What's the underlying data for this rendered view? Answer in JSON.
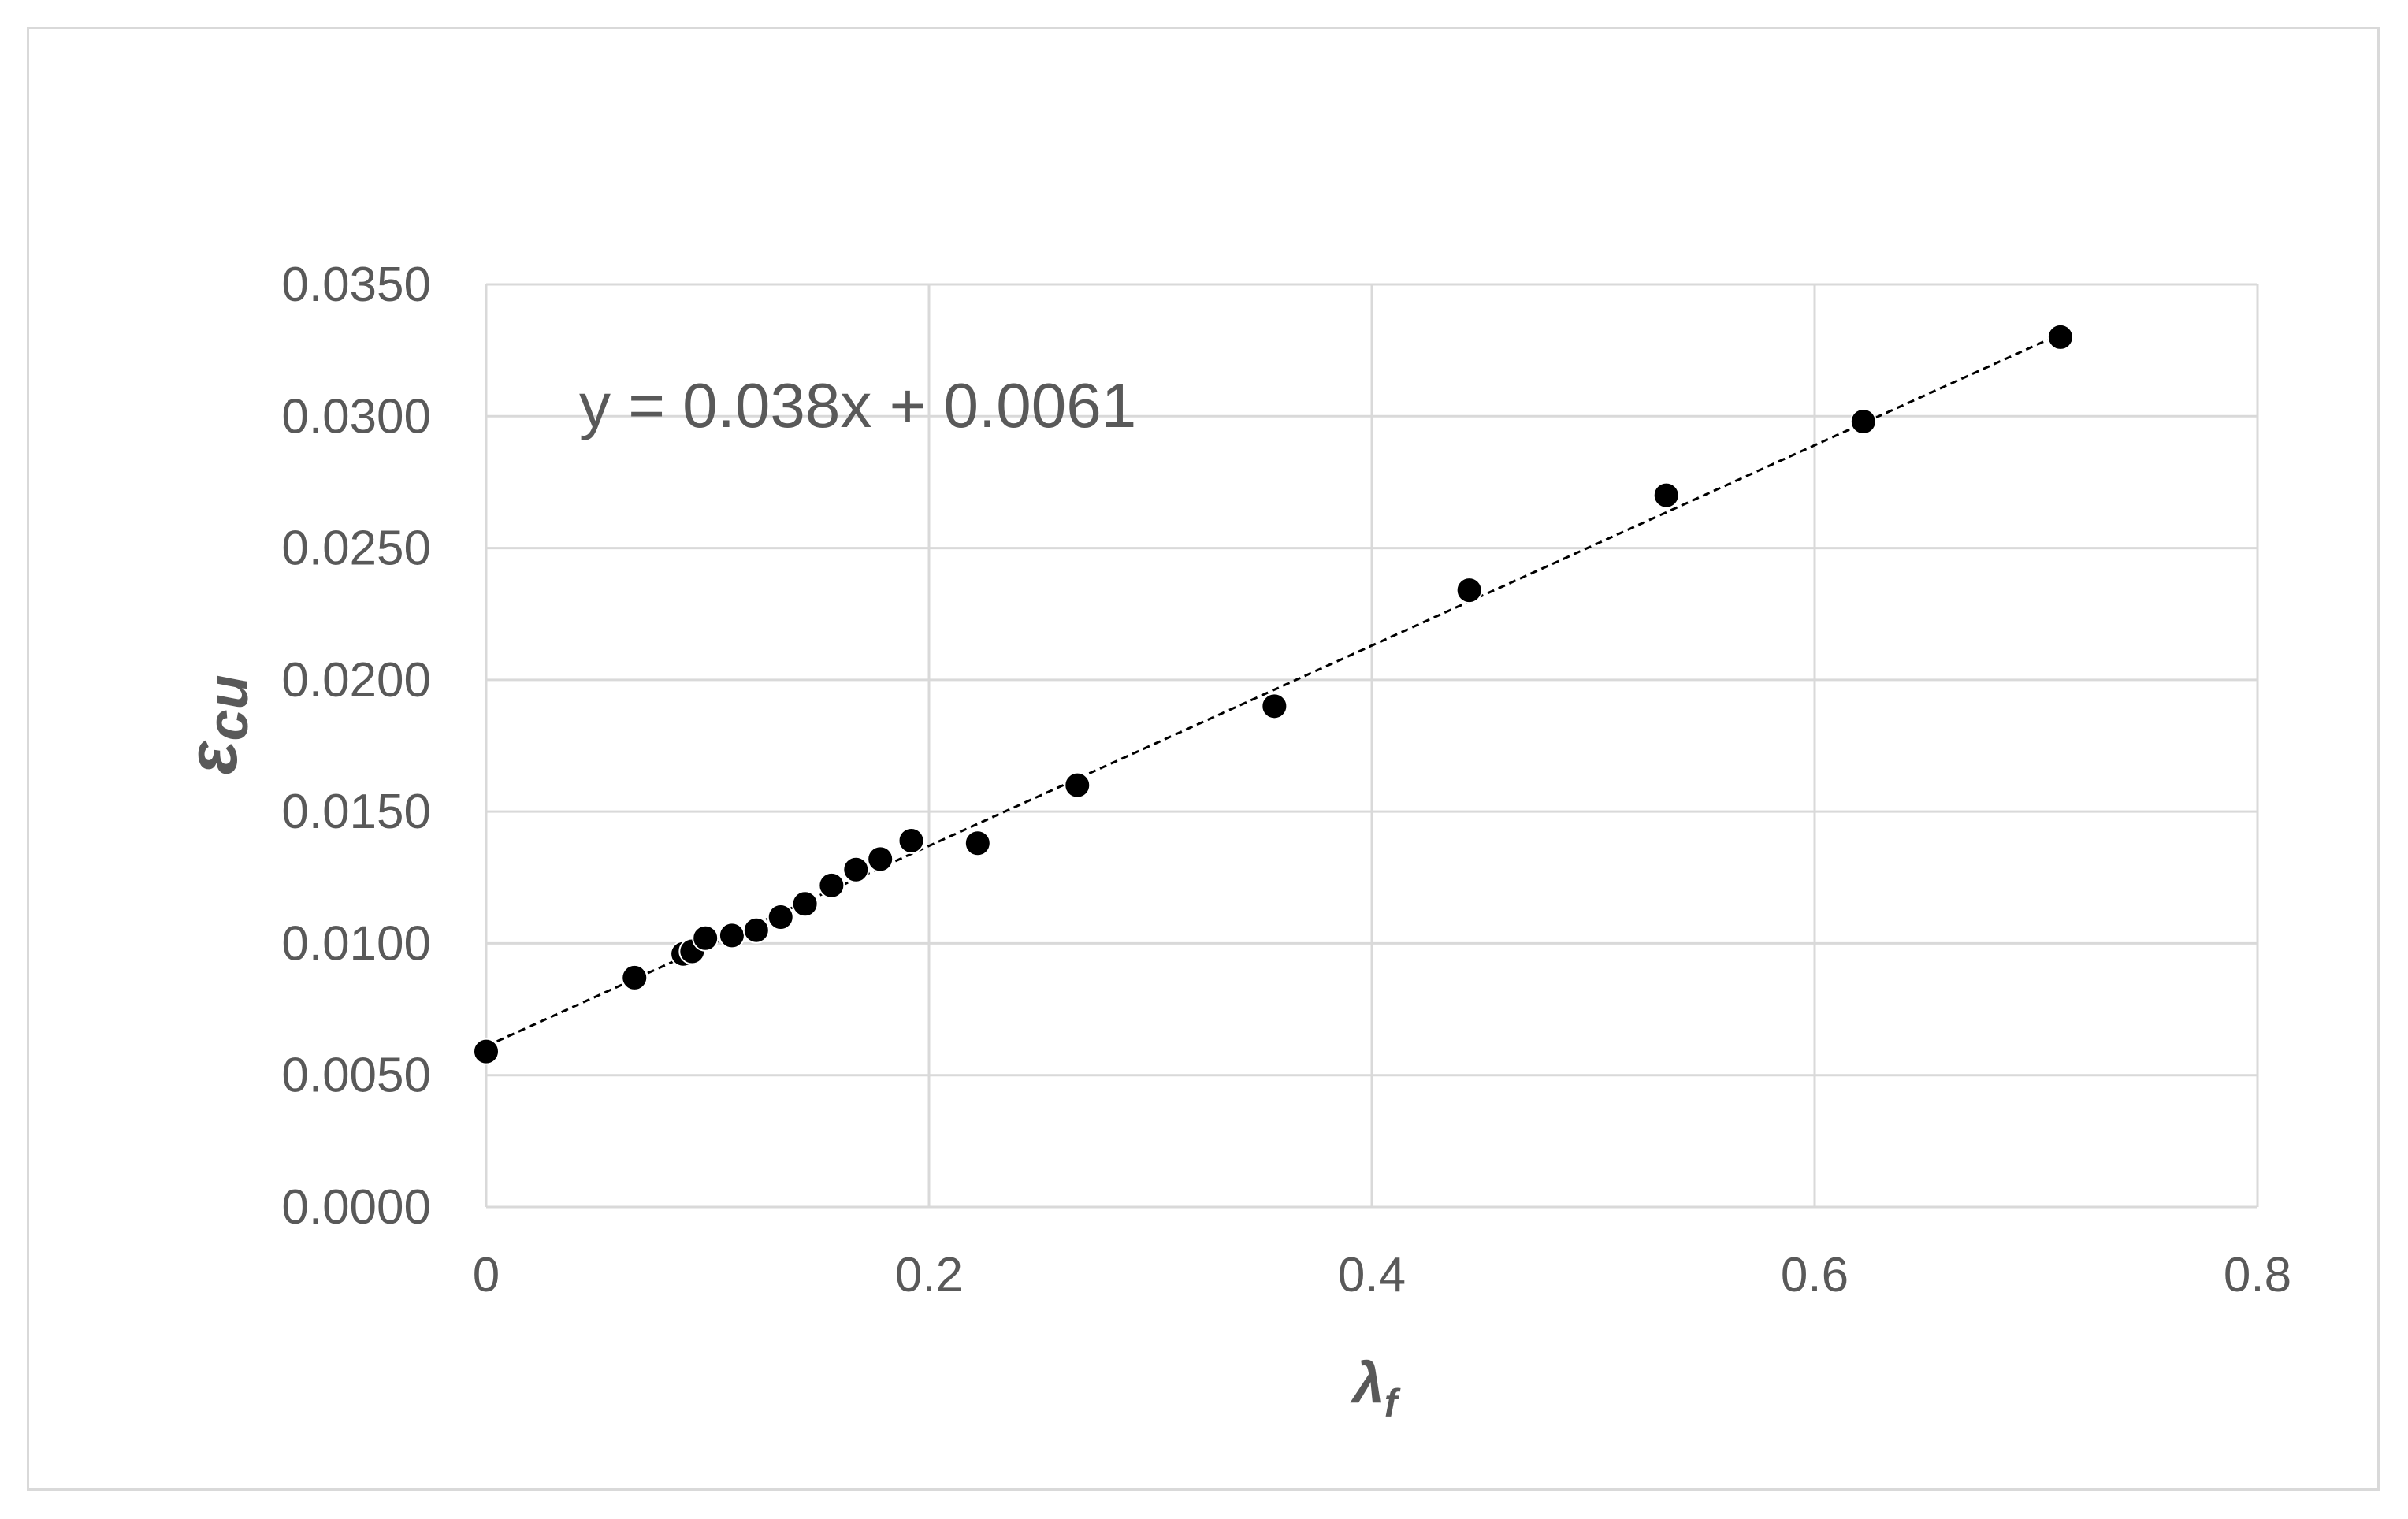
{
  "chart_data": {
    "type": "scatter",
    "xlabel": "λ",
    "xlabel_subscript": "f",
    "ylabel": "ε",
    "ylabel_subscript": "cu",
    "xlim": [
      0,
      0.8
    ],
    "ylim": [
      0,
      0.035
    ],
    "x_ticks": [
      0,
      0.2,
      0.4,
      0.6,
      0.8
    ],
    "x_tick_labels": [
      "0",
      "0.2",
      "0.4",
      "0.6",
      "0.8"
    ],
    "y_ticks": [
      0,
      0.005,
      0.01,
      0.015,
      0.02,
      0.025,
      0.03,
      0.035
    ],
    "y_tick_labels": [
      "0.0000",
      "0.0050",
      "0.0100",
      "0.0150",
      "0.0200",
      "0.0250",
      "0.0300",
      "0.0350"
    ],
    "grid": true,
    "legend": false,
    "series": [
      {
        "marker": "filled-circle",
        "color": "#000000",
        "x": [
          0,
          0.067,
          0.089,
          0.093,
          0.099,
          0.111,
          0.122,
          0.133,
          0.144,
          0.156,
          0.167,
          0.178,
          0.192,
          0.222,
          0.267,
          0.356,
          0.444,
          0.533,
          0.622,
          0.711
        ],
        "y": [
          0.0059,
          0.0087,
          0.0096,
          0.0097,
          0.0102,
          0.0103,
          0.0105,
          0.011,
          0.0115,
          0.0122,
          0.0128,
          0.0132,
          0.0139,
          0.0138,
          0.016,
          0.019,
          0.0234,
          0.027,
          0.0298,
          0.033
        ]
      }
    ],
    "trendline": {
      "type": "linear",
      "slope": 0.038,
      "intercept": 0.0061,
      "style": "dashed",
      "color": "#000000",
      "x_range": [
        0,
        0.711
      ],
      "equation_label": "y = 0.038x + 0.0061"
    }
  }
}
